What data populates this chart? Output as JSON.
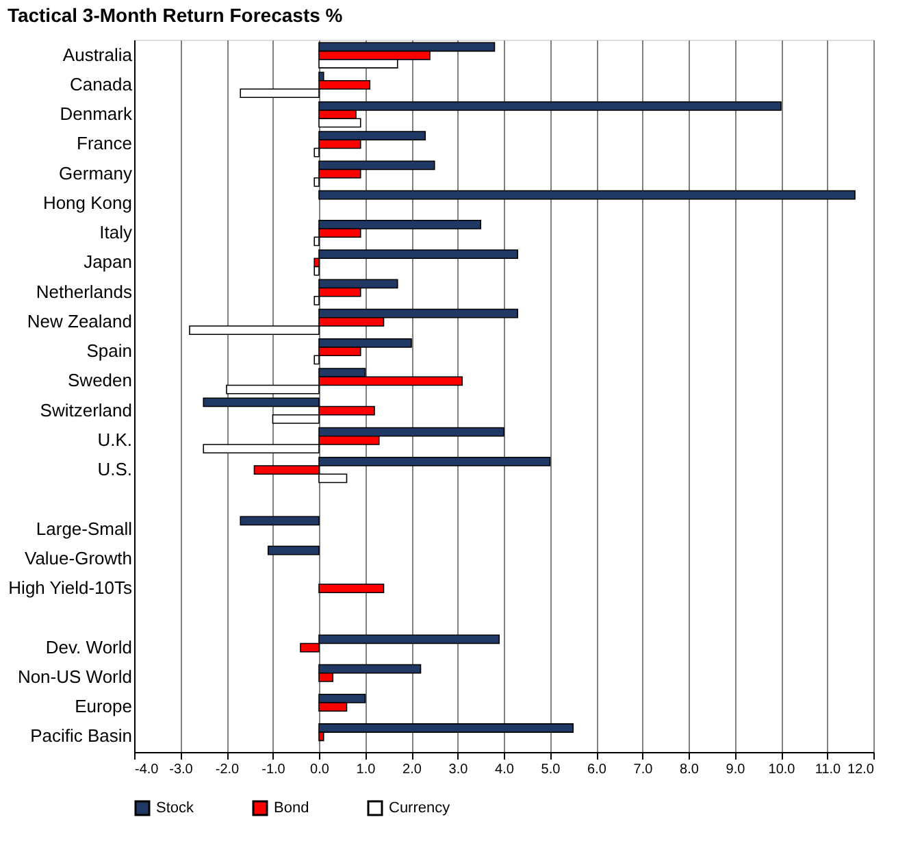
{
  "chart_data": {
    "type": "bar",
    "orientation": "horizontal",
    "title": "Tactical 3-Month Return Forecasts %",
    "categories": [
      "Australia",
      "Canada",
      "Denmark",
      "France",
      "Germany",
      "Hong Kong",
      "Italy",
      "Japan",
      "Netherlands",
      "New Zealand",
      "Spain",
      "Sweden",
      "Switzerland",
      "U.K.",
      "U.S.",
      null,
      "Large-Small",
      "Value-Growth",
      "High Yield-10Ts",
      null,
      "Dev. World",
      "Non-US World",
      "Europe",
      "Pacific Basin"
    ],
    "series": [
      {
        "name": "Stock",
        "color": "#1f3864",
        "values": [
          3.8,
          0.1,
          10.0,
          2.3,
          2.5,
          11.6,
          3.5,
          4.3,
          1.7,
          4.3,
          2.0,
          1.0,
          -2.5,
          4.0,
          5.0,
          null,
          -1.7,
          -1.1,
          null,
          null,
          3.9,
          2.2,
          1.0,
          5.5
        ]
      },
      {
        "name": "Bond",
        "color": "#ff0000",
        "values": [
          2.4,
          1.1,
          0.8,
          0.9,
          0.9,
          null,
          0.9,
          -0.1,
          0.9,
          1.4,
          0.9,
          3.1,
          1.2,
          1.3,
          -1.4,
          null,
          null,
          null,
          1.4,
          null,
          -0.4,
          0.3,
          0.6,
          0.1
        ]
      },
      {
        "name": "Currency",
        "color": "#ffffff",
        "values": [
          1.7,
          -1.7,
          0.9,
          -0.1,
          -0.1,
          null,
          -0.1,
          -0.1,
          -0.1,
          -2.8,
          -0.1,
          -2.0,
          -1.0,
          -2.5,
          0.6,
          null,
          null,
          null,
          null,
          null,
          null,
          null,
          null,
          null
        ]
      }
    ],
    "xlim": [
      -4,
      12
    ],
    "xticks": [
      {
        "value": -4,
        "label": "-4.0"
      },
      {
        "value": -3,
        "label": "-3.0"
      },
      {
        "value": -2,
        "label": "-2.0"
      },
      {
        "value": -1,
        "label": "-1.0"
      },
      {
        "value": 0,
        "label": "0.0"
      },
      {
        "value": 1,
        "label": "1.0"
      },
      {
        "value": 2,
        "label": "2.0"
      },
      {
        "value": 3,
        "label": "3.0"
      },
      {
        "value": 4,
        "label": "4.0"
      },
      {
        "value": 5,
        "label": "5.0"
      },
      {
        "value": 6,
        "label": "6.0"
      },
      {
        "value": 7,
        "label": "7.0"
      },
      {
        "value": 8,
        "label": "8.0"
      },
      {
        "value": 9,
        "label": "9.0"
      },
      {
        "value": 10,
        "label": "10.0"
      },
      {
        "value": 11,
        "label": "11.0"
      },
      {
        "value": 12,
        "label": "12.0"
      }
    ],
    "grid": "x",
    "legend": "bottom"
  }
}
